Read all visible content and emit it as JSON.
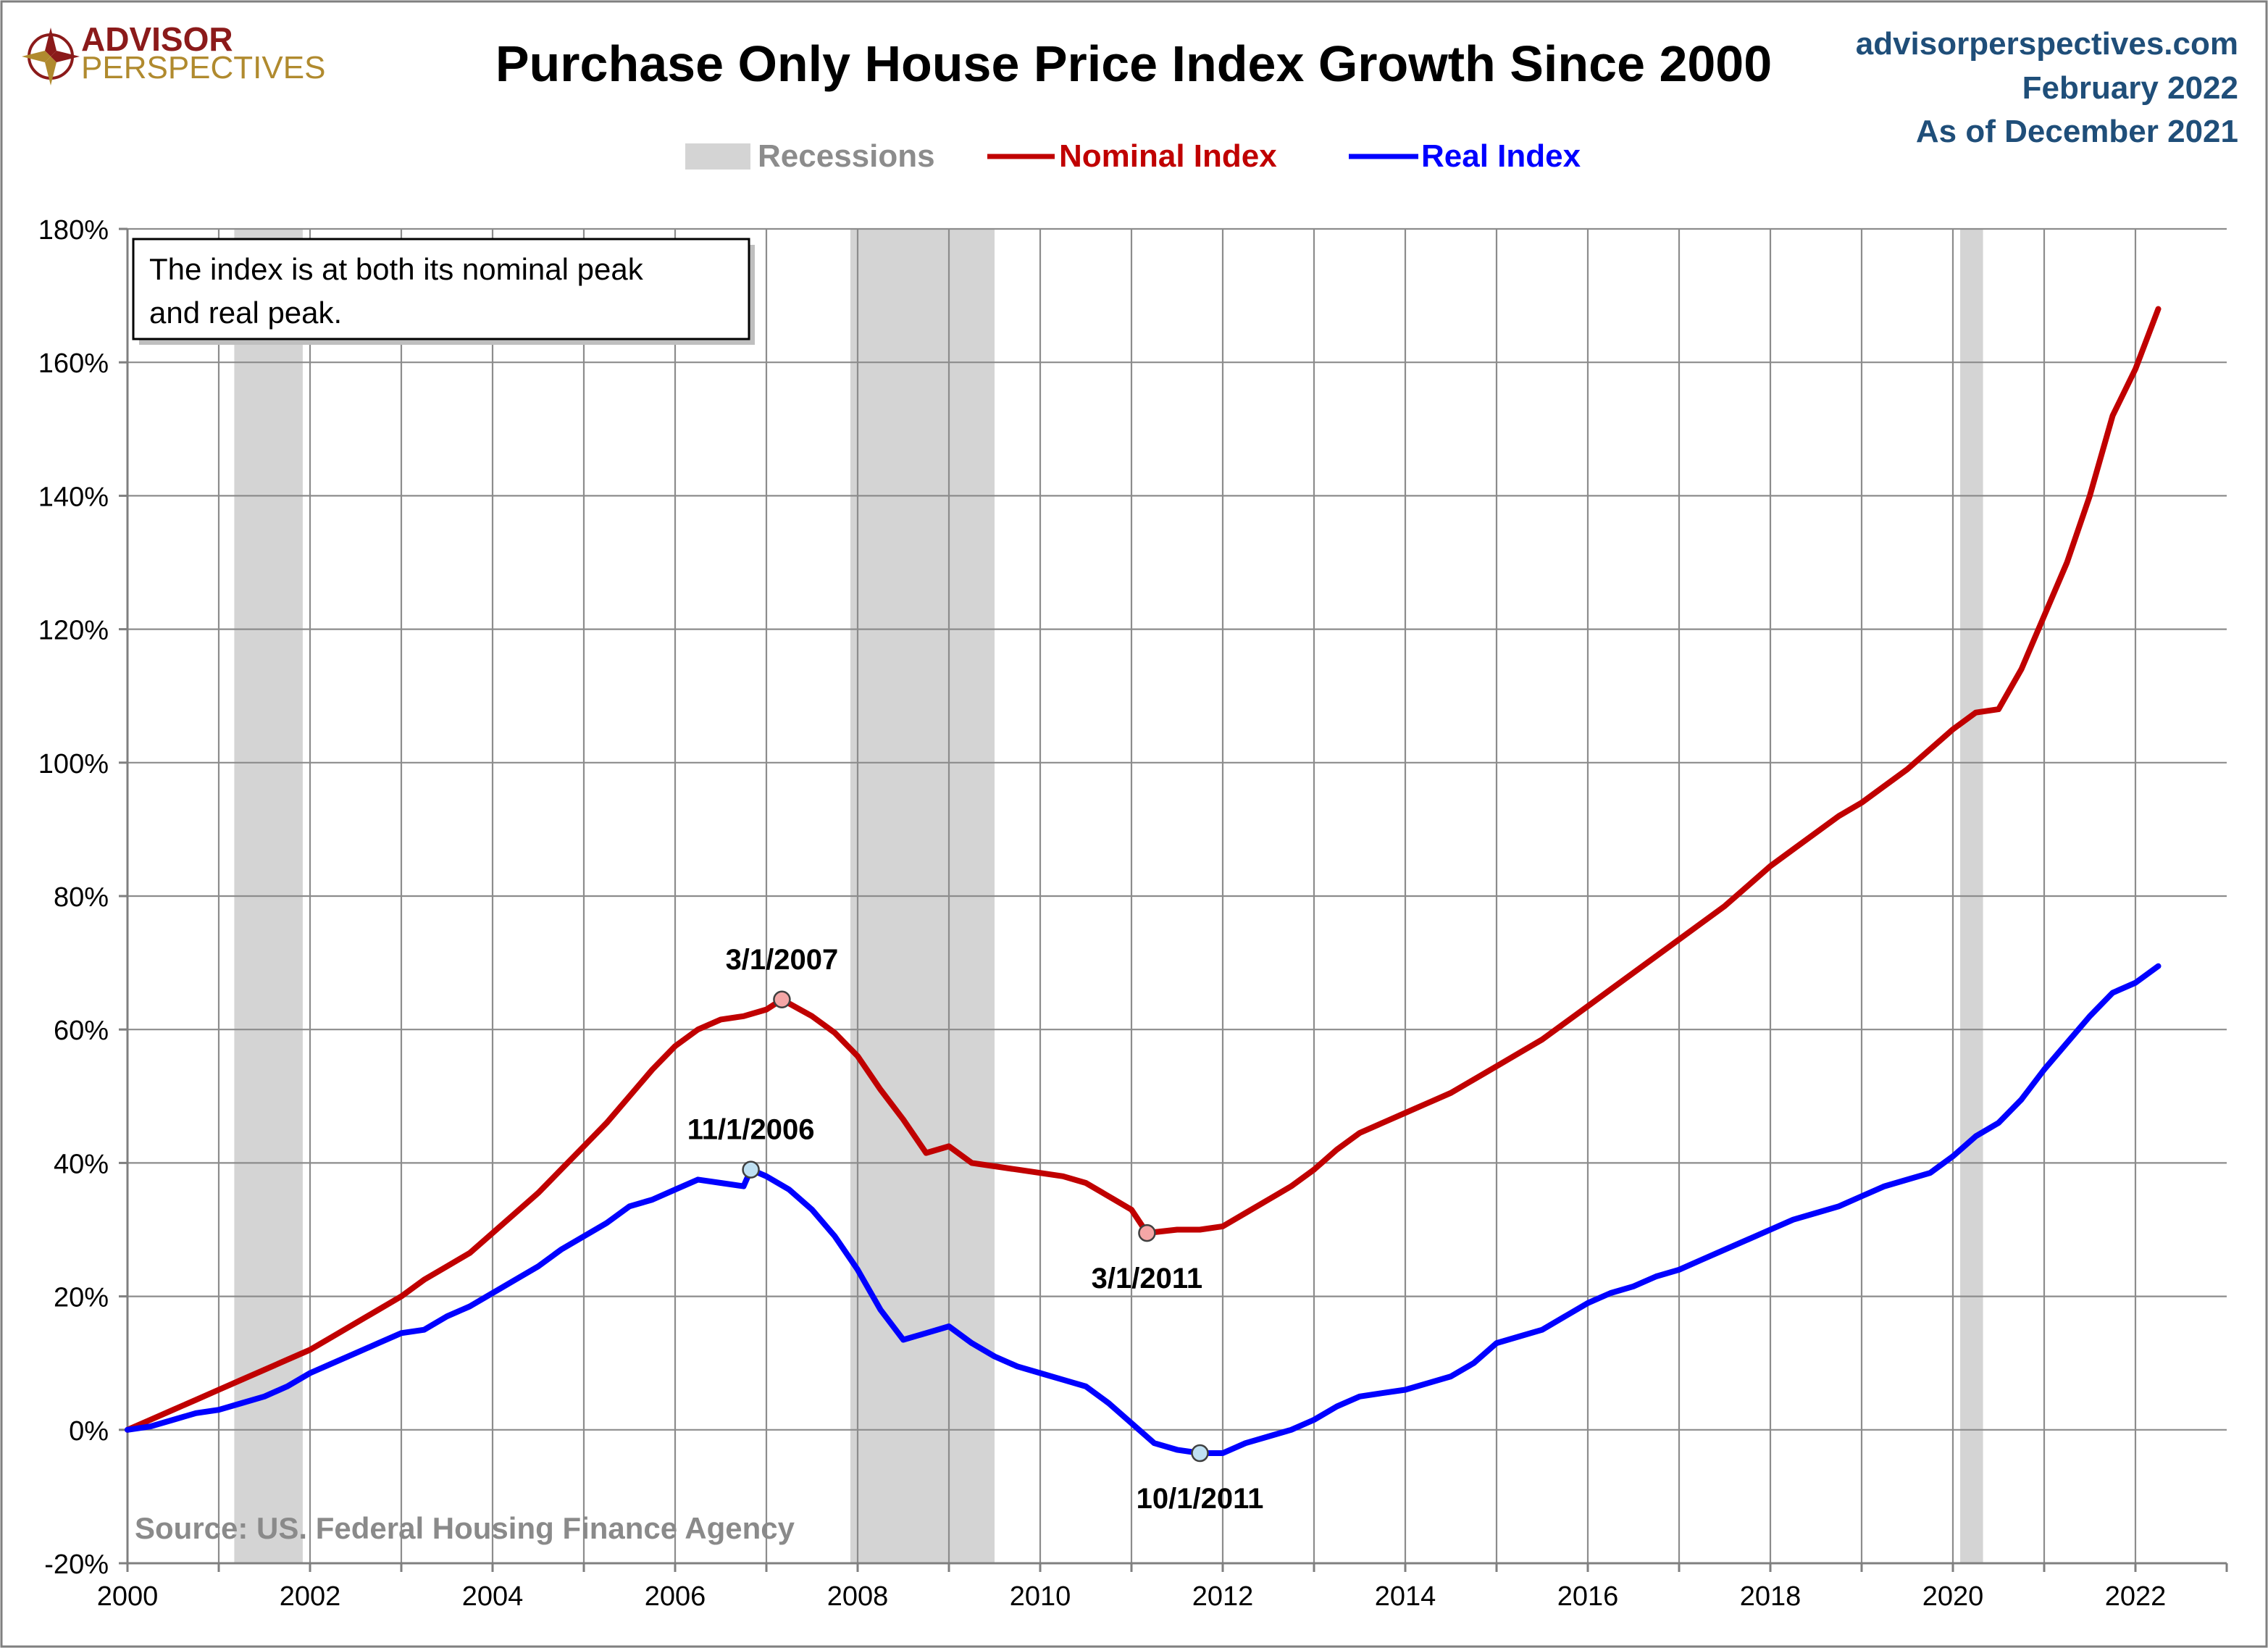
{
  "logo": {
    "line1": "ADVISOR",
    "line2": "PERSPECTIVES"
  },
  "header": {
    "title": "Purchase Only House Price Index Growth Since 2000",
    "site": "advisorperspectives.com",
    "date": "February 2022",
    "as_of": "As of December 2021"
  },
  "note": {
    "line1": "The index is at both its nominal peak",
    "line2": "and real peak."
  },
  "source": "Source: US. Federal Housing Finance Agency",
  "colors": {
    "nominal": "#c00000",
    "real": "#0000ff",
    "recession": "#d4d4d4",
    "grid": "#8c8c8c",
    "corner_text": "#1f4e79"
  },
  "chart_data": {
    "type": "line",
    "title": "Purchase Only House Price Index Growth Since 2000",
    "xlim": [
      2000,
      2023
    ],
    "ylim": [
      -20,
      180
    ],
    "x_ticks": [
      2000,
      2002,
      2004,
      2006,
      2008,
      2010,
      2012,
      2014,
      2016,
      2018,
      2020,
      2022
    ],
    "y_ticks": [
      -20,
      0,
      20,
      40,
      60,
      80,
      100,
      120,
      140,
      160,
      180
    ],
    "y_tick_labels": [
      "-20%",
      "0%",
      "20%",
      "40%",
      "60%",
      "80%",
      "100%",
      "120%",
      "140%",
      "160%",
      "180%"
    ],
    "grid": true,
    "legend_position": "top-center",
    "legend": {
      "recessions": "Recessions",
      "nominal": "Nominal Index",
      "real": "Real Index"
    },
    "recessions": [
      [
        2001.17,
        2001.92
      ],
      [
        2007.92,
        2009.5
      ],
      [
        2020.08,
        2020.33
      ]
    ],
    "series": [
      {
        "name": "Nominal Index",
        "color": "#c00000",
        "points": [
          [
            2000.0,
            0
          ],
          [
            2000.25,
            1.5
          ],
          [
            2000.5,
            3
          ],
          [
            2000.75,
            4.5
          ],
          [
            2001.0,
            6
          ],
          [
            2001.25,
            7.5
          ],
          [
            2001.5,
            9
          ],
          [
            2001.75,
            10.5
          ],
          [
            2002.0,
            12
          ],
          [
            2002.25,
            14
          ],
          [
            2002.5,
            16
          ],
          [
            2002.75,
            18
          ],
          [
            2003.0,
            20
          ],
          [
            2003.25,
            22.5
          ],
          [
            2003.5,
            24.5
          ],
          [
            2003.75,
            26.5
          ],
          [
            2004.0,
            29.5
          ],
          [
            2004.25,
            32.5
          ],
          [
            2004.5,
            35.5
          ],
          [
            2004.75,
            39
          ],
          [
            2005.0,
            42.5
          ],
          [
            2005.25,
            46
          ],
          [
            2005.5,
            50
          ],
          [
            2005.75,
            54
          ],
          [
            2006.0,
            57.5
          ],
          [
            2006.25,
            60
          ],
          [
            2006.5,
            61.5
          ],
          [
            2006.75,
            62
          ],
          [
            2007.0,
            63
          ],
          [
            2007.17,
            64.5
          ],
          [
            2007.5,
            62
          ],
          [
            2007.75,
            59.5
          ],
          [
            2008.0,
            56
          ],
          [
            2008.25,
            51
          ],
          [
            2008.5,
            46.5
          ],
          [
            2008.75,
            41.5
          ],
          [
            2009.0,
            42.5
          ],
          [
            2009.25,
            40
          ],
          [
            2009.5,
            39.5
          ],
          [
            2009.75,
            39
          ],
          [
            2010.0,
            38.5
          ],
          [
            2010.25,
            38
          ],
          [
            2010.5,
            37
          ],
          [
            2010.75,
            35
          ],
          [
            2011.0,
            33
          ],
          [
            2011.17,
            29.5
          ],
          [
            2011.5,
            30
          ],
          [
            2011.75,
            30
          ],
          [
            2012.0,
            30.5
          ],
          [
            2012.25,
            32.5
          ],
          [
            2012.5,
            34.5
          ],
          [
            2012.75,
            36.5
          ],
          [
            2013.0,
            39
          ],
          [
            2013.25,
            42
          ],
          [
            2013.5,
            44.5
          ],
          [
            2013.75,
            46
          ],
          [
            2014.0,
            47.5
          ],
          [
            2014.25,
            49
          ],
          [
            2014.5,
            50.5
          ],
          [
            2014.75,
            52.5
          ],
          [
            2015.0,
            54.5
          ],
          [
            2015.25,
            56.5
          ],
          [
            2015.5,
            58.5
          ],
          [
            2015.75,
            61
          ],
          [
            2016.0,
            63.5
          ],
          [
            2016.25,
            66
          ],
          [
            2016.5,
            68.5
          ],
          [
            2016.75,
            71
          ],
          [
            2017.0,
            73.5
          ],
          [
            2017.25,
            76
          ],
          [
            2017.5,
            78.5
          ],
          [
            2017.75,
            81.5
          ],
          [
            2018.0,
            84.5
          ],
          [
            2018.25,
            87
          ],
          [
            2018.5,
            89.5
          ],
          [
            2018.75,
            92
          ],
          [
            2019.0,
            94
          ],
          [
            2019.25,
            96.5
          ],
          [
            2019.5,
            99
          ],
          [
            2019.75,
            102
          ],
          [
            2020.0,
            105
          ],
          [
            2020.25,
            107.5
          ],
          [
            2020.5,
            108
          ],
          [
            2020.75,
            114
          ],
          [
            2021.0,
            122
          ],
          [
            2021.25,
            130
          ],
          [
            2021.5,
            140
          ],
          [
            2021.75,
            152
          ],
          [
            2022.0,
            159
          ],
          [
            2022.25,
            168
          ]
        ]
      },
      {
        "name": "Real Index",
        "color": "#0000ff",
        "points": [
          [
            2000.0,
            0
          ],
          [
            2000.25,
            0.5
          ],
          [
            2000.5,
            1.5
          ],
          [
            2000.75,
            2.5
          ],
          [
            2001.0,
            3
          ],
          [
            2001.25,
            4
          ],
          [
            2001.5,
            5
          ],
          [
            2001.75,
            6.5
          ],
          [
            2002.0,
            8.5
          ],
          [
            2002.25,
            10
          ],
          [
            2002.5,
            11.5
          ],
          [
            2002.75,
            13
          ],
          [
            2003.0,
            14.5
          ],
          [
            2003.25,
            15
          ],
          [
            2003.5,
            17
          ],
          [
            2003.75,
            18.5
          ],
          [
            2004.0,
            20.5
          ],
          [
            2004.25,
            22.5
          ],
          [
            2004.5,
            24.5
          ],
          [
            2004.75,
            27
          ],
          [
            2005.0,
            29
          ],
          [
            2005.25,
            31
          ],
          [
            2005.5,
            33.5
          ],
          [
            2005.75,
            34.5
          ],
          [
            2006.0,
            36
          ],
          [
            2006.25,
            37.5
          ],
          [
            2006.5,
            37
          ],
          [
            2006.75,
            36.5
          ],
          [
            2006.83,
            39
          ],
          [
            2007.0,
            38
          ],
          [
            2007.25,
            36
          ],
          [
            2007.5,
            33
          ],
          [
            2007.75,
            29
          ],
          [
            2008.0,
            24
          ],
          [
            2008.25,
            18
          ],
          [
            2008.5,
            13.5
          ],
          [
            2008.75,
            14.5
          ],
          [
            2009.0,
            15.5
          ],
          [
            2009.25,
            13
          ],
          [
            2009.5,
            11
          ],
          [
            2009.75,
            9.5
          ],
          [
            2010.0,
            8.5
          ],
          [
            2010.25,
            7.5
          ],
          [
            2010.5,
            6.5
          ],
          [
            2010.75,
            4
          ],
          [
            2011.0,
            1
          ],
          [
            2011.25,
            -2
          ],
          [
            2011.5,
            -3
          ],
          [
            2011.75,
            -3.5
          ],
          [
            2012.0,
            -3.5
          ],
          [
            2012.25,
            -2
          ],
          [
            2012.5,
            -1
          ],
          [
            2012.75,
            0
          ],
          [
            2013.0,
            1.5
          ],
          [
            2013.25,
            3.5
          ],
          [
            2013.5,
            5
          ],
          [
            2013.75,
            5.5
          ],
          [
            2014.0,
            6
          ],
          [
            2014.25,
            7
          ],
          [
            2014.5,
            8
          ],
          [
            2014.75,
            10
          ],
          [
            2015.0,
            13
          ],
          [
            2015.25,
            14
          ],
          [
            2015.5,
            15
          ],
          [
            2015.75,
            17
          ],
          [
            2016.0,
            19
          ],
          [
            2016.25,
            20.5
          ],
          [
            2016.5,
            21.5
          ],
          [
            2016.75,
            23
          ],
          [
            2017.0,
            24
          ],
          [
            2017.25,
            25.5
          ],
          [
            2017.5,
            27
          ],
          [
            2017.75,
            28.5
          ],
          [
            2018.0,
            30
          ],
          [
            2018.25,
            31.5
          ],
          [
            2018.5,
            32.5
          ],
          [
            2018.75,
            33.5
          ],
          [
            2019.0,
            35
          ],
          [
            2019.25,
            36.5
          ],
          [
            2019.5,
            37.5
          ],
          [
            2019.75,
            38.5
          ],
          [
            2020.0,
            41
          ],
          [
            2020.25,
            44
          ],
          [
            2020.5,
            46
          ],
          [
            2020.75,
            49.5
          ],
          [
            2021.0,
            54
          ],
          [
            2021.25,
            58
          ],
          [
            2021.5,
            62
          ],
          [
            2021.75,
            65.5
          ],
          [
            2022.0,
            67
          ],
          [
            2022.25,
            69.5
          ]
        ]
      }
    ],
    "annotations": [
      {
        "series": "Nominal Index",
        "x": 2007.17,
        "y": 64.5,
        "label": "3/1/2007",
        "placement": "above"
      },
      {
        "series": "Real Index",
        "x": 2006.83,
        "y": 39,
        "label": "11/1/2006",
        "placement": "above"
      },
      {
        "series": "Nominal Index",
        "x": 2011.17,
        "y": 29.5,
        "label": "3/1/2011",
        "placement": "below"
      },
      {
        "series": "Real Index",
        "x": 2011.75,
        "y": -3.5,
        "label": "10/1/2011",
        "placement": "below"
      }
    ]
  }
}
